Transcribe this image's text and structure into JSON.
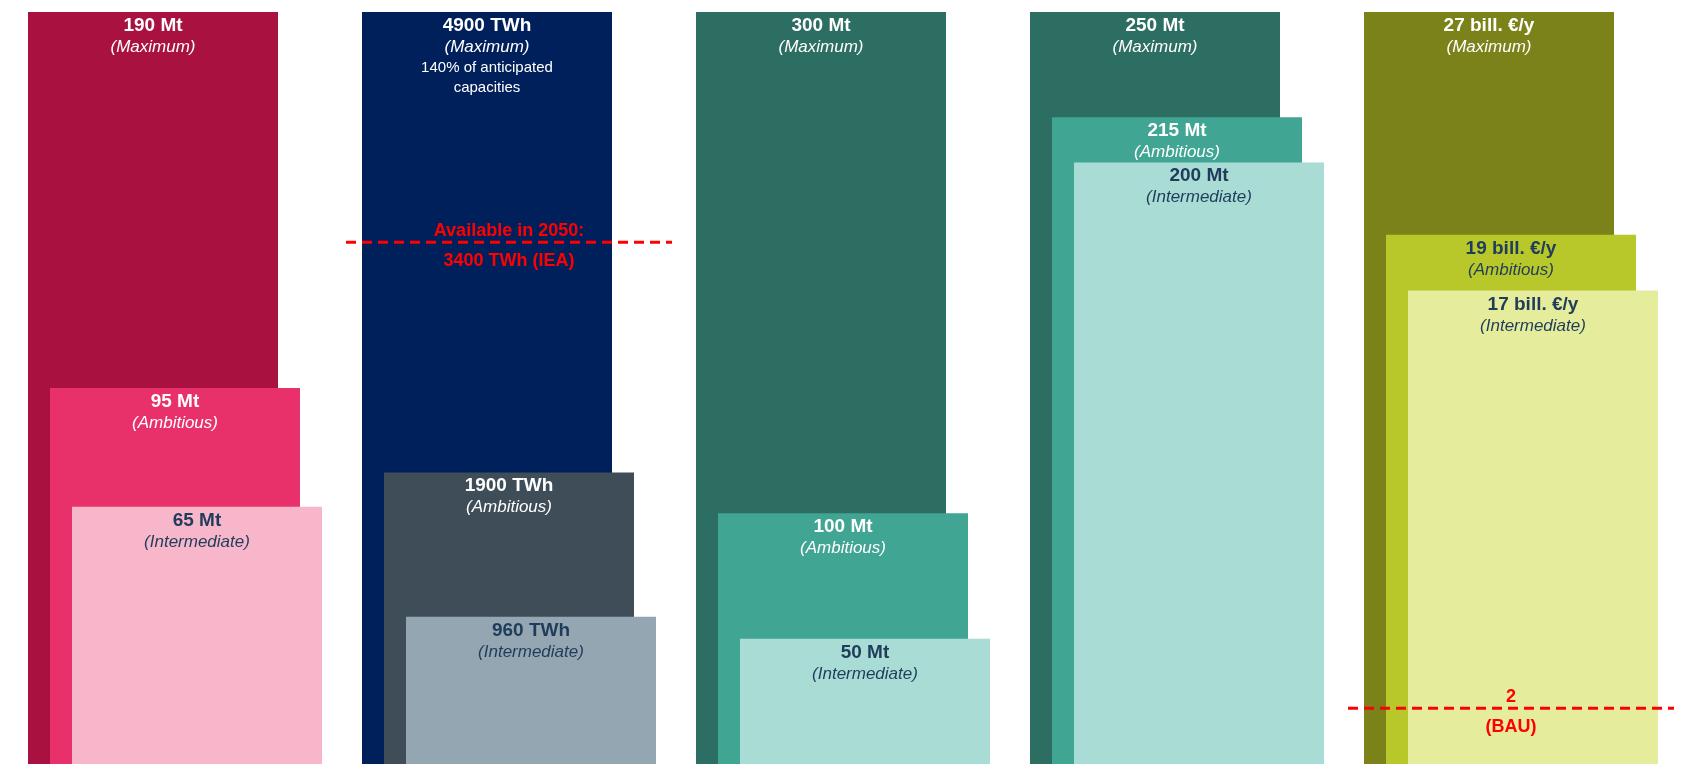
{
  "chart_data": [
    {
      "type": "bar",
      "categories": [
        null
      ],
      "series": [
        {
          "name": "(Maximum)",
          "color": "#a91140",
          "values": [
            190
          ],
          "value_labels": [
            "190 Mt"
          ]
        },
        {
          "name": "(Ambitious)",
          "color": "#e8306a",
          "values": [
            95
          ],
          "value_labels": [
            "95 Mt"
          ]
        },
        {
          "name": "(Intermediate)",
          "color": "#f8b6cb",
          "values": [
            65
          ],
          "value_labels": [
            "65 Mt"
          ]
        }
      ]
    },
    {
      "type": "bar",
      "categories": [
        null
      ],
      "series": [
        {
          "name": "(Maximum)",
          "color": "#00205b",
          "values": [
            4900
          ],
          "value_labels": [
            "4900 TWh"
          ]
        },
        {
          "name": "(Ambitious)",
          "color": "#3f4d58",
          "values": [
            1900
          ],
          "value_labels": [
            "1900 TWh"
          ]
        },
        {
          "name": "(Intermediate)",
          "color": "#93a6b1",
          "values": [
            960
          ],
          "value_labels": [
            "960 TWh"
          ]
        }
      ],
      "annotations": [
        "140% of anticipated capacities"
      ],
      "ref_lines": [
        {
          "axis": "y",
          "value": 3400,
          "label": "Available in 2050:\n3400 TWh (IEA)",
          "color": "#ff0000",
          "line_style": "dashed"
        }
      ]
    },
    {
      "type": "bar",
      "categories": [
        null
      ],
      "series": [
        {
          "name": "(Maximum)",
          "color": "#2d6e62",
          "values": [
            300
          ],
          "value_labels": [
            "300 Mt"
          ]
        },
        {
          "name": "(Ambitious)",
          "color": "#40a592",
          "values": [
            100
          ],
          "value_labels": [
            "100 Mt"
          ]
        },
        {
          "name": "(Intermediate)",
          "color": "#a8dcd5",
          "values": [
            50
          ],
          "value_labels": [
            "50 Mt"
          ]
        }
      ]
    },
    {
      "type": "bar",
      "categories": [
        null
      ],
      "series": [
        {
          "name": "(Maximum)",
          "color": "#2d6e62",
          "values": [
            250
          ],
          "value_labels": [
            "250 Mt"
          ]
        },
        {
          "name": "(Ambitious)",
          "color": "#40a592",
          "values": [
            215
          ],
          "value_labels": [
            "215 Mt"
          ]
        },
        {
          "name": "(Intermediate)",
          "color": "#a8dcd5",
          "values": [
            200
          ],
          "value_labels": [
            "200 Mt"
          ]
        }
      ]
    },
    {
      "type": "bar",
      "categories": [
        null
      ],
      "series": [
        {
          "name": "(Maximum)",
          "color": "#7a8219",
          "values": [
            27
          ],
          "value_labels": [
            "27 bill. €/y"
          ]
        },
        {
          "name": "(Ambitious)",
          "color": "#b8c72a",
          "values": [
            19
          ],
          "value_labels": [
            "19 bill. €/y"
          ]
        },
        {
          "name": "(Intermediate)",
          "color": "#e5ec9c",
          "values": [
            17
          ],
          "value_labels": [
            "17 bill. €/y"
          ]
        }
      ],
      "ref_lines": [
        {
          "axis": "y",
          "value": 2,
          "label": "2\n(BAU)",
          "color": "#ff0000",
          "line_style": "dashed"
        }
      ]
    }
  ]
}
